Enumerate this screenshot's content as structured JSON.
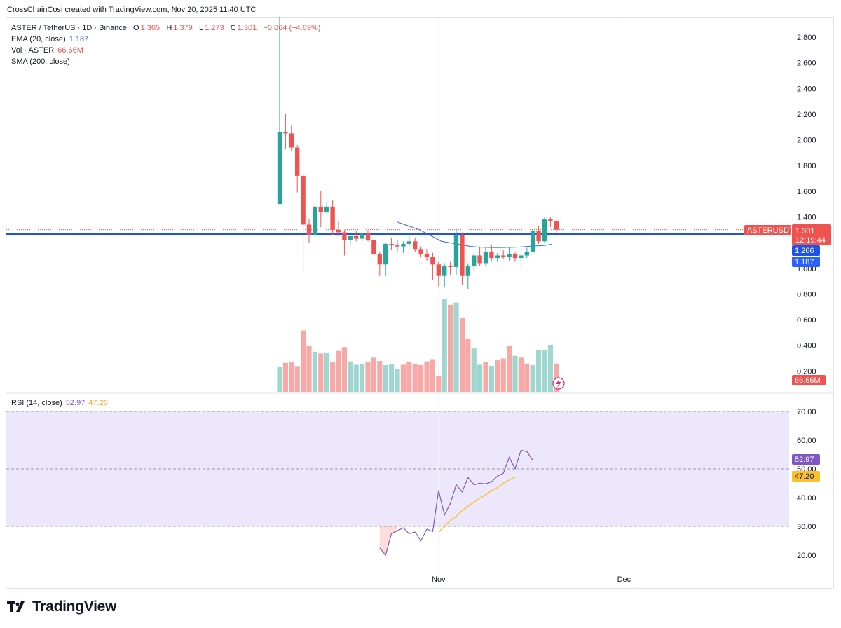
{
  "header": {
    "attribution": "CrossChainCosi created with TradingView.com, Nov 20, 2025 11:40 UTC"
  },
  "footer": {
    "brand": "TradingView"
  },
  "legend": {
    "symbol": "ASTER / TetherUS · 1D · Binance",
    "o_label": "O",
    "o_value": "1.365",
    "h_label": "H",
    "h_value": "1.379",
    "l_label": "L",
    "l_value": "1.273",
    "c_label": "C",
    "c_value": "1.301",
    "change": "−0.064 (−4.69%)",
    "ema_label": "EMA (20, close)",
    "ema_value": "1.187",
    "vol_label": "Vol · ASTER",
    "vol_value": "66.66M",
    "sma_label": "SMA (200, close)",
    "rsi_label": "RSI (14, close)",
    "rsi_value": "52.97",
    "rsi_ma_value": "47.20"
  },
  "price_badges": {
    "symbol": "ASTERUSDT",
    "last": "1.301",
    "countdown": "12:19:44",
    "sma": "1.266",
    "ema": "1.187",
    "volume": "66.66M",
    "rsi": "52.97",
    "rsi_ma": "47.20"
  },
  "colors": {
    "up": "#26a69a",
    "down": "#ef5350",
    "up_vol": "#9fd6d0",
    "down_vol": "#f6a9a7",
    "ema": "#2962ff",
    "sma": "#1e53e5",
    "rsi": "#7e57c2",
    "rsi_ma": "#fbc02d",
    "rsi_band": "#ede7fb",
    "grid": "#f0f3fa"
  },
  "chart_data": [
    {
      "type": "candlestick",
      "title": "ASTER / TetherUS · 1D · Binance",
      "x_axis": {
        "ticks": [
          "Nov",
          "Dec"
        ]
      },
      "y_axis": {
        "ticks": [
          "0.200",
          "0.400",
          "0.600",
          "0.800",
          "1.000",
          "1.200",
          "1.400",
          "1.600",
          "1.800",
          "2.000",
          "2.200",
          "2.400",
          "2.600",
          "2.800"
        ],
        "range": [
          0.13,
          3.0
        ]
      },
      "candles": [
        {
          "o": 1.5,
          "h": 2.96,
          "l": 1.5,
          "c": 2.06
        },
        {
          "o": 2.06,
          "h": 2.2,
          "l": 1.93,
          "c": 2.05
        },
        {
          "o": 2.05,
          "h": 2.11,
          "l": 1.91,
          "c": 1.94
        },
        {
          "o": 1.94,
          "h": 1.96,
          "l": 1.59,
          "c": 1.72
        },
        {
          "o": 1.72,
          "h": 1.74,
          "l": 0.98,
          "c": 1.34
        },
        {
          "o": 1.34,
          "h": 1.38,
          "l": 1.2,
          "c": 1.26
        },
        {
          "o": 1.26,
          "h": 1.5,
          "l": 1.24,
          "c": 1.48
        },
        {
          "o": 1.48,
          "h": 1.6,
          "l": 1.32,
          "c": 1.44
        },
        {
          "o": 1.44,
          "h": 1.52,
          "l": 1.42,
          "c": 1.48
        },
        {
          "o": 1.48,
          "h": 1.53,
          "l": 1.26,
          "c": 1.3
        },
        {
          "o": 1.3,
          "h": 1.37,
          "l": 1.25,
          "c": 1.28
        },
        {
          "o": 1.28,
          "h": 1.3,
          "l": 1.1,
          "c": 1.22
        },
        {
          "o": 1.22,
          "h": 1.28,
          "l": 1.18,
          "c": 1.25
        },
        {
          "o": 1.25,
          "h": 1.29,
          "l": 1.21,
          "c": 1.23
        },
        {
          "o": 1.23,
          "h": 1.28,
          "l": 1.2,
          "c": 1.27
        },
        {
          "o": 1.27,
          "h": 1.29,
          "l": 1.21,
          "c": 1.22
        },
        {
          "o": 1.22,
          "h": 1.24,
          "l": 1.09,
          "c": 1.11
        },
        {
          "o": 1.11,
          "h": 1.13,
          "l": 0.94,
          "c": 1.03
        },
        {
          "o": 1.03,
          "h": 1.2,
          "l": 0.94,
          "c": 1.19
        },
        {
          "o": 1.19,
          "h": 1.24,
          "l": 1.14,
          "c": 1.18
        },
        {
          "o": 1.18,
          "h": 1.22,
          "l": 1.13,
          "c": 1.17
        },
        {
          "o": 1.17,
          "h": 1.21,
          "l": 1.12,
          "c": 1.19
        },
        {
          "o": 1.19,
          "h": 1.27,
          "l": 1.17,
          "c": 1.21
        },
        {
          "o": 1.21,
          "h": 1.24,
          "l": 1.13,
          "c": 1.15
        },
        {
          "o": 1.15,
          "h": 1.17,
          "l": 1.09,
          "c": 1.11
        },
        {
          "o": 1.11,
          "h": 1.15,
          "l": 1.06,
          "c": 1.09
        },
        {
          "o": 1.09,
          "h": 1.12,
          "l": 0.91,
          "c": 1.03
        },
        {
          "o": 1.03,
          "h": 1.05,
          "l": 0.86,
          "c": 0.94
        },
        {
          "o": 0.94,
          "h": 1.04,
          "l": 0.85,
          "c": 1.02
        },
        {
          "o": 1.02,
          "h": 1.05,
          "l": 0.95,
          "c": 1.01
        },
        {
          "o": 1.01,
          "h": 1.3,
          "l": 0.95,
          "c": 1.26
        },
        {
          "o": 1.26,
          "h": 1.28,
          "l": 0.87,
          "c": 0.94
        },
        {
          "o": 0.94,
          "h": 1.04,
          "l": 0.84,
          "c": 1.02
        },
        {
          "o": 1.02,
          "h": 1.12,
          "l": 0.98,
          "c": 1.1
        },
        {
          "o": 1.1,
          "h": 1.17,
          "l": 1.02,
          "c": 1.04
        },
        {
          "o": 1.04,
          "h": 1.16,
          "l": 1.02,
          "c": 1.13
        },
        {
          "o": 1.13,
          "h": 1.18,
          "l": 1.06,
          "c": 1.08
        },
        {
          "o": 1.08,
          "h": 1.12,
          "l": 1.05,
          "c": 1.1
        },
        {
          "o": 1.1,
          "h": 1.14,
          "l": 1.07,
          "c": 1.09
        },
        {
          "o": 1.09,
          "h": 1.16,
          "l": 1.06,
          "c": 1.11
        },
        {
          "o": 1.11,
          "h": 1.13,
          "l": 1.05,
          "c": 1.08
        },
        {
          "o": 1.08,
          "h": 1.12,
          "l": 1.01,
          "c": 1.1
        },
        {
          "o": 1.1,
          "h": 1.16,
          "l": 1.08,
          "c": 1.13
        },
        {
          "o": 1.13,
          "h": 1.3,
          "l": 1.13,
          "c": 1.29
        },
        {
          "o": 1.29,
          "h": 1.33,
          "l": 1.19,
          "c": 1.21
        },
        {
          "o": 1.21,
          "h": 1.4,
          "l": 1.2,
          "c": 1.38
        },
        {
          "o": 1.38,
          "h": 1.4,
          "l": 1.32,
          "c": 1.37
        },
        {
          "o": 1.365,
          "h": 1.379,
          "l": 1.273,
          "c": 1.301
        }
      ],
      "ema_line": [
        1.36,
        1.34,
        1.32,
        1.3,
        1.27,
        1.24,
        1.21,
        1.2,
        1.19,
        1.18,
        1.17,
        1.165,
        1.163,
        1.162,
        1.162,
        1.163,
        1.164,
        1.167,
        1.171,
        1.175,
        1.178,
        1.187
      ],
      "sma_level": 1.266,
      "volume": [
        {
          "v": 0.154,
          "up": true
        },
        {
          "v": 0.176,
          "up": false
        },
        {
          "v": 0.182,
          "up": false
        },
        {
          "v": 0.157,
          "up": false
        },
        {
          "v": 0.369,
          "up": false
        },
        {
          "v": 0.275,
          "up": false
        },
        {
          "v": 0.242,
          "up": true
        },
        {
          "v": 0.232,
          "up": false
        },
        {
          "v": 0.238,
          "up": true
        },
        {
          "v": 0.182,
          "up": false
        },
        {
          "v": 0.247,
          "up": false
        },
        {
          "v": 0.27,
          "up": false
        },
        {
          "v": 0.185,
          "up": true
        },
        {
          "v": 0.165,
          "up": true
        },
        {
          "v": 0.169,
          "up": true
        },
        {
          "v": 0.181,
          "up": false
        },
        {
          "v": 0.207,
          "up": false
        },
        {
          "v": 0.187,
          "up": false
        },
        {
          "v": 0.163,
          "up": true
        },
        {
          "v": 0.167,
          "up": true
        },
        {
          "v": 0.141,
          "up": true
        },
        {
          "v": 0.165,
          "up": false
        },
        {
          "v": 0.181,
          "up": false
        },
        {
          "v": 0.168,
          "up": false
        },
        {
          "v": 0.163,
          "up": false
        },
        {
          "v": 0.185,
          "up": false
        },
        {
          "v": 0.198,
          "up": false
        },
        {
          "v": 0.099,
          "up": false
        },
        {
          "v": 0.555,
          "up": true
        },
        {
          "v": 0.522,
          "up": false
        },
        {
          "v": 0.535,
          "up": true
        },
        {
          "v": 0.445,
          "up": false
        },
        {
          "v": 0.319,
          "up": false
        },
        {
          "v": 0.262,
          "up": true
        },
        {
          "v": 0.165,
          "up": true
        },
        {
          "v": 0.18,
          "up": false
        },
        {
          "v": 0.158,
          "up": true
        },
        {
          "v": 0.191,
          "up": false
        },
        {
          "v": 0.202,
          "up": false
        },
        {
          "v": 0.278,
          "up": false
        },
        {
          "v": 0.218,
          "up": true
        },
        {
          "v": 0.207,
          "up": false
        },
        {
          "v": 0.172,
          "up": false
        },
        {
          "v": 0.163,
          "up": true
        },
        {
          "v": 0.255,
          "up": true
        },
        {
          "v": 0.253,
          "up": true
        },
        {
          "v": 0.284,
          "up": true
        },
        {
          "v": 0.172,
          "up": false
        }
      ]
    },
    {
      "type": "line",
      "title": "RSI (14, close)",
      "y_axis": {
        "ticks": [
          "20.00",
          "30.00",
          "40.00",
          "50.00",
          "60.00",
          "70.00"
        ],
        "range": [
          16,
          73
        ]
      },
      "bands": {
        "upper": 70,
        "middle": 50,
        "lower": 30
      },
      "series": [
        {
          "name": "RSI",
          "start_index": 17,
          "values": [
            22.5,
            20.0,
            27.5,
            28.5,
            29.5,
            27.5,
            28.0,
            25.0,
            29.0,
            28.2,
            42.5,
            34.0,
            38.0,
            44.5,
            42.0,
            47.0,
            44.5,
            45.0,
            44.8,
            45.5,
            47.5,
            48.5,
            54.0,
            50.0,
            56.5,
            56.0,
            53.0
          ]
        },
        {
          "name": "RSI-based MA",
          "start_index": 27,
          "values": [
            28.0,
            30.0,
            32.0,
            33.5,
            35.5,
            37.0,
            38.5,
            39.8,
            41.0,
            42.5,
            43.5,
            45.0,
            46.2,
            47.2
          ]
        }
      ]
    }
  ]
}
